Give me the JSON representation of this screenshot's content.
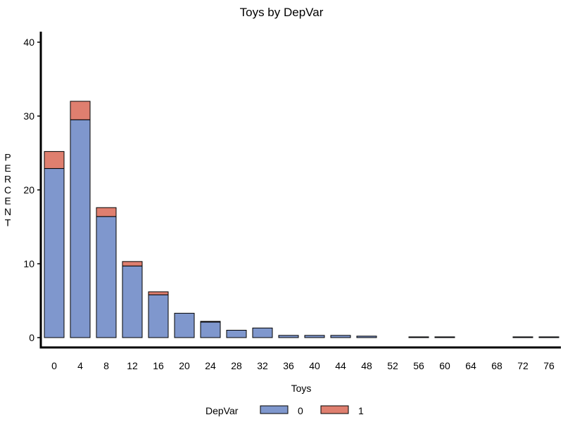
{
  "chart_data": {
    "type": "bar",
    "stacked": true,
    "title": "Toys by DepVar",
    "xlabel": "Toys",
    "ylabel": "PERCENT",
    "ylim": [
      0,
      40
    ],
    "yticks": [
      0,
      10,
      20,
      30,
      40
    ],
    "categories": [
      "0",
      "4",
      "8",
      "12",
      "16",
      "20",
      "24",
      "28",
      "32",
      "36",
      "40",
      "44",
      "48",
      "52",
      "56",
      "60",
      "64",
      "68",
      "72",
      "76"
    ],
    "legend": {
      "title": "DepVar",
      "position": "bottom"
    },
    "series": [
      {
        "name": "0",
        "color": "#7f97cd",
        "values": [
          22.9,
          29.5,
          16.4,
          9.7,
          5.8,
          3.3,
          2.1,
          1.0,
          1.3,
          0.3,
          0.3,
          0.3,
          0.2,
          0,
          0.1,
          0.1,
          0,
          0,
          0.1,
          0.1
        ]
      },
      {
        "name": "1",
        "color": "#df7f6f",
        "values": [
          2.3,
          2.5,
          1.2,
          0.6,
          0.4,
          0,
          0.1,
          0,
          0,
          0,
          0,
          0,
          0,
          0,
          0,
          0,
          0,
          0,
          0,
          0
        ]
      }
    ]
  }
}
